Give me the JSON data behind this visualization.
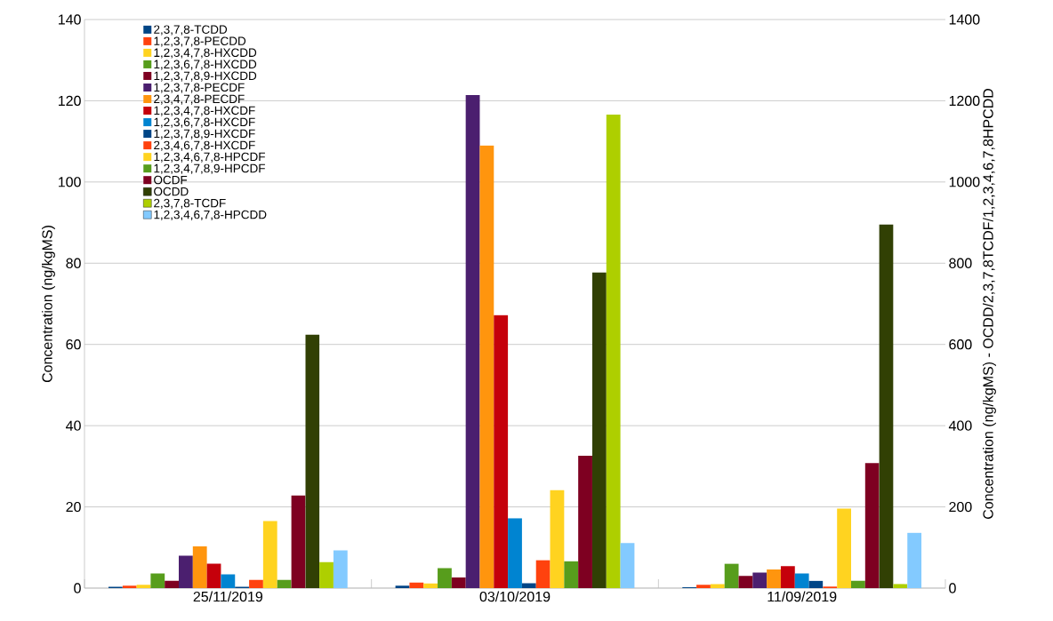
{
  "chart_data": {
    "type": "bar",
    "categories": [
      "25/11/2019",
      "03/10/2019",
      "11/09/2019"
    ],
    "ylabel": "Concentration (ng/kgMS)",
    "y2label": "Concentration (ng/kgMS) - OCDD/2,3,7,8TCDF/1,2,3,4,6,7,8HPCDD",
    "ylim": [
      0,
      140
    ],
    "yticks": [
      0,
      20,
      40,
      60,
      80,
      100,
      120,
      140
    ],
    "y2lim": [
      0,
      1400
    ],
    "y2ticks": [
      0,
      200,
      400,
      600,
      800,
      1000,
      1200,
      1400
    ],
    "grid": "y",
    "legend": "top left",
    "series": [
      {
        "name": "2,3,7,8-TCDD",
        "color": "#004586",
        "values": [
          0.3,
          0.6,
          0.2
        ]
      },
      {
        "name": "1,2,3,7,8-PECDD",
        "color": "#ff420e",
        "values": [
          0.6,
          1.4,
          0.8
        ]
      },
      {
        "name": "1,2,3,4,7,8-HXCDD",
        "color": "#ffd320",
        "values": [
          0.8,
          1.2,
          1.0
        ]
      },
      {
        "name": "1,2,3,6,7,8-HXCDD",
        "color": "#579d1c",
        "values": [
          3.6,
          4.9,
          6.0
        ]
      },
      {
        "name": "1,2,3,7,8,9-HXCDD",
        "color": "#7e0021",
        "values": [
          1.8,
          2.6,
          3.0
        ]
      },
      {
        "name": "1,2,3,7,8-PECDF",
        "color": "#4b1f6f",
        "values": [
          8.0,
          121.4,
          3.8
        ]
      },
      {
        "name": "2,3,4,7,8-PECDF",
        "color": "#ff950e",
        "values": [
          10.3,
          109,
          4.6
        ]
      },
      {
        "name": "1,2,3,4,7,8-HXCDF",
        "color": "#c5000b",
        "values": [
          6.0,
          67.2,
          5.4
        ]
      },
      {
        "name": "1,2,3,6,7,8-HXCDF",
        "color": "#0084d1",
        "values": [
          3.4,
          17.2,
          3.6
        ]
      },
      {
        "name": "1,2,3,7,8,9-HXCDF",
        "color": "#004586",
        "values": [
          0.3,
          1.2,
          1.8
        ]
      },
      {
        "name": "2,3,4,6,7,8-HXCDF",
        "color": "#ff420e",
        "values": [
          2.0,
          6.9,
          0.4
        ]
      },
      {
        "name": "1,2,3,4,6,7,8-HPCDF",
        "color": "#ffd320",
        "values": [
          16.5,
          24.1,
          19.6
        ]
      },
      {
        "name": "1,2,3,4,7,8,9-HPCDF",
        "color": "#579d1c",
        "values": [
          2.0,
          6.6,
          1.8
        ]
      },
      {
        "name": "OCDF",
        "color": "#7e0021",
        "values": [
          22.8,
          32.6,
          30.8
        ]
      },
      {
        "name": "OCDD",
        "color": "#314004",
        "axis": "y2",
        "values": [
          624,
          777,
          895
        ]
      },
      {
        "name": "2,3,7,8-TCDF",
        "color": "#aecf00",
        "axis": "y2",
        "values": [
          64,
          1166,
          10
        ]
      },
      {
        "name": "1,2,3,4,6,7,8-HPCDD",
        "color": "#83caff",
        "axis": "y2",
        "values": [
          93,
          111,
          136
        ]
      }
    ]
  }
}
